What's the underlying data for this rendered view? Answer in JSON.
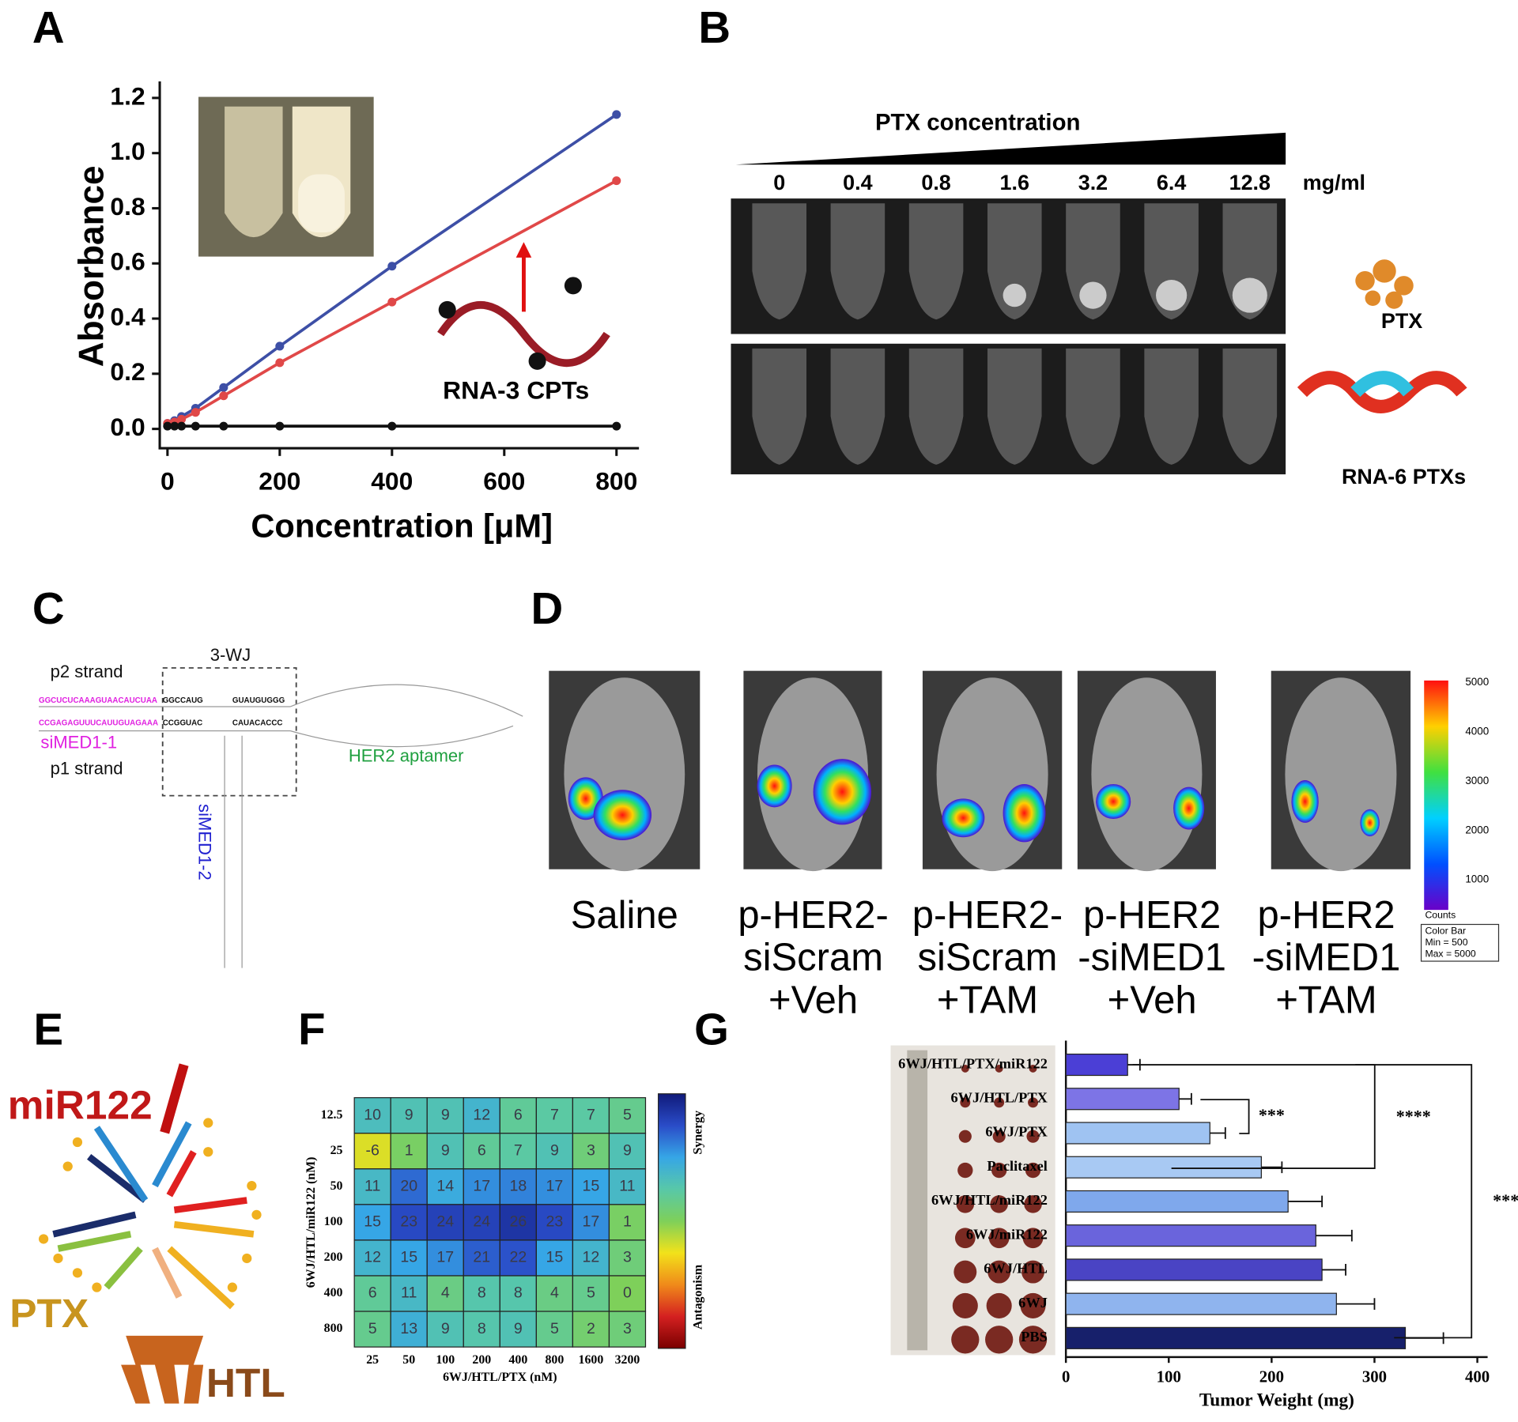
{
  "panel_labels": [
    "A",
    "B",
    "C",
    "D",
    "E",
    "F",
    "G"
  ],
  "chart_data": [
    {
      "type": "line",
      "x": [
        0,
        12.5,
        25,
        50,
        100,
        200,
        400,
        800
      ],
      "series": [
        {
          "color": "#3d4fa6",
          "values": [
            0.02,
            0.03,
            0.045,
            0.075,
            0.15,
            0.3,
            0.59,
            1.14
          ]
        },
        {
          "color": "#e04848",
          "values": [
            0.02,
            0.025,
            0.035,
            0.06,
            0.12,
            0.24,
            0.46,
            0.9
          ]
        },
        {
          "color": "#111111",
          "values": [
            0.01,
            0.01,
            0.01,
            0.01,
            0.01,
            0.01,
            0.01,
            0.01
          ]
        }
      ],
      "xlim": [
        0,
        840
      ],
      "ylim": [
        -0.07,
        1.26
      ],
      "xticks": [
        0,
        200,
        400,
        600,
        800
      ],
      "yticks": [
        {
          "value": 0,
          "label": "0.0"
        },
        0.2,
        0.4,
        0.6,
        0.8,
        {
          "value": 1,
          "label": "1.0"
        },
        1.2
      ],
      "xlabel": "Concentration [μM]",
      "ylabel": "Absorbance",
      "annotation": "RNA-3 CPTs"
    },
    {
      "type": "heatmap",
      "categories": [
        "25",
        "50",
        "100",
        "200",
        "400",
        "800",
        "1600",
        "3200"
      ],
      "rows": [
        "12.5",
        "25",
        "50",
        "100",
        "200",
        "400",
        "800"
      ],
      "values": [
        [
          10,
          9,
          9,
          12,
          6,
          7,
          7,
          5
        ],
        [
          -6,
          1,
          9,
          6,
          7,
          9,
          3,
          9
        ],
        [
          11,
          20,
          14,
          17,
          18,
          17,
          15,
          11
        ],
        [
          15,
          23,
          24,
          24,
          26,
          23,
          17,
          1
        ],
        [
          12,
          15,
          17,
          21,
          22,
          15,
          12,
          3
        ],
        [
          6,
          11,
          4,
          8,
          8,
          4,
          5,
          0
        ],
        [
          5,
          13,
          9,
          8,
          9,
          5,
          2,
          3
        ]
      ],
      "clim": [
        -30,
        30
      ],
      "colors": [
        "#7a0000",
        "#d42020",
        "#f08a1a",
        "#f2e21a",
        "#7ed05a",
        "#58c8a8",
        "#36a6e6",
        "#2a4cc8",
        "#101a7a"
      ],
      "xlabel": "6WJ/HTL/PTX (nM)",
      "ylabel": "6WJ/HTL/miR122 (nM)",
      "colorbar_labels": [
        "Synergy",
        "Antagonism"
      ]
    },
    {
      "type": "barh",
      "categories": [
        "6WJ/HTL/PTX/miR122",
        "6WJ/HTL/PTX",
        "6WJ/PTX",
        "Paclitaxel",
        "6WJ/HTL/miR122",
        "6WJ/miR122",
        "6WJ/HTL",
        "6WJ",
        "PBS"
      ],
      "values": [
        60,
        110,
        140,
        190,
        216,
        243,
        249,
        263,
        330
      ],
      "errors": [
        12,
        12,
        15,
        20,
        33,
        35,
        23,
        37,
        37
      ],
      "colors": [
        "#4b3fd6",
        "#7d74e6",
        "#9fc3f2",
        "#a8c9f3",
        "#7fa8ec",
        "#6a64dc",
        "#4a44c4",
        "#8fb4ee",
        "#17206b"
      ],
      "xlim": [
        0,
        410
      ],
      "xticks": [
        0,
        100,
        200,
        300,
        400
      ],
      "xlabel": "Tumor Weight (mg)",
      "significance": [
        "***",
        "****",
        "****"
      ]
    }
  ],
  "panel_b": {
    "title": "PTX concentration",
    "concentrations": [
      "0",
      "0.4",
      "0.8",
      "1.6",
      "3.2",
      "6.4",
      "12.8"
    ],
    "unit": "mg/ml",
    "labels": [
      "PTX",
      "RNA-6 PTXs"
    ]
  },
  "panel_c": {
    "labels": [
      "p2 strand",
      "3-WJ",
      "siMED1-1",
      "p1 strand",
      "HER2 aptamer",
      "siMED1-2"
    ],
    "sequences": [
      "GGCUCUCAAAGUAACAUCUAA",
      "CCGAGAGUUUCAUUGUAGAAA",
      "GGCCAUG",
      "CCGGUAC",
      "GUAUGUGGG",
      "CAUACACCC"
    ]
  },
  "panel_d": {
    "groups": [
      [
        "Saline"
      ],
      [
        "p-HER2-",
        "siScram",
        "+Veh"
      ],
      [
        "p-HER2-",
        "siScram",
        "+TAM"
      ],
      [
        "p-HER2",
        "-siMED1",
        "+Veh"
      ],
      [
        "p-HER2",
        "-siMED1",
        "+TAM"
      ]
    ],
    "colorbar_ticks": [
      "5000",
      "4000",
      "3000",
      "2000",
      "1000"
    ],
    "colorbar_title": "Counts",
    "legend": [
      "Color Bar",
      "Min = 500",
      "Max = 5000"
    ]
  },
  "panel_e": {
    "labels": [
      "miR122",
      "PTX",
      "HTL"
    ]
  }
}
